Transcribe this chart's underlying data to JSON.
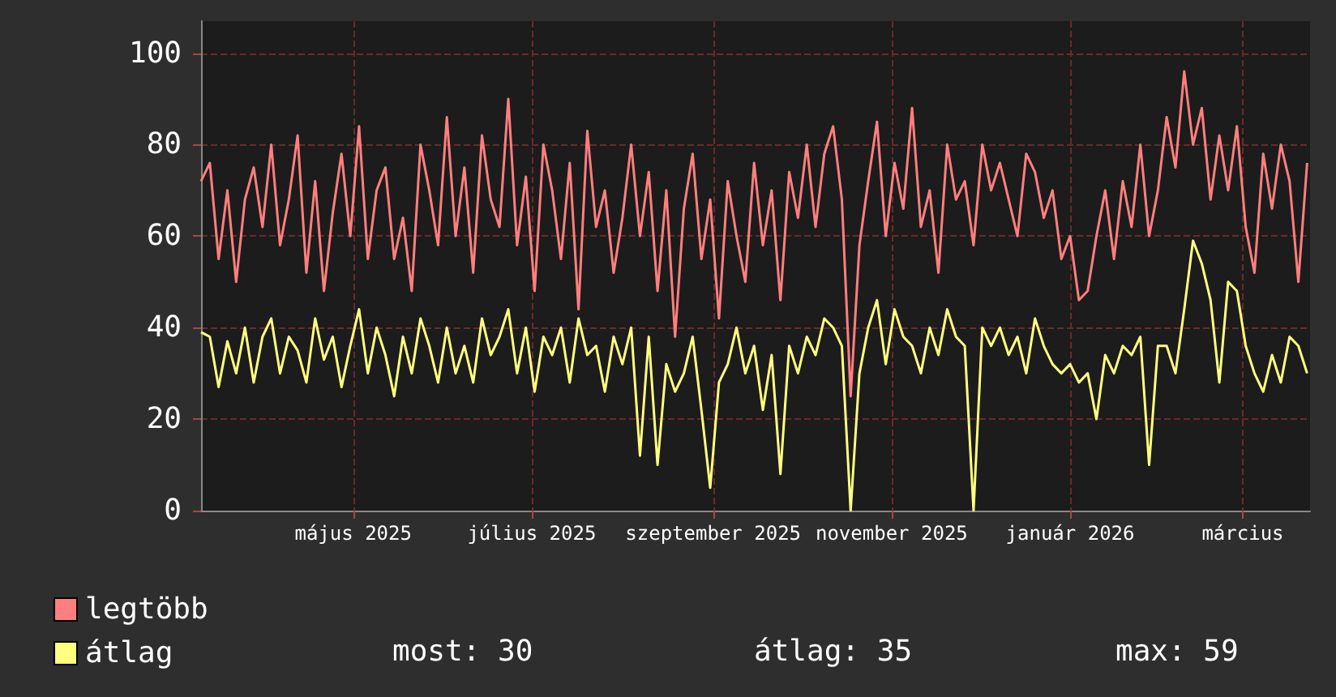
{
  "chart_data": {
    "type": "line",
    "x": [
      "2025-03-10",
      "2025-03-13",
      "2025-03-16",
      "2025-03-19",
      "2025-03-22",
      "2025-03-25",
      "2025-03-28",
      "2025-03-31",
      "2025-04-03",
      "2025-04-06",
      "2025-04-09",
      "2025-04-12",
      "2025-04-15",
      "2025-04-18",
      "2025-04-21",
      "2025-04-24",
      "2025-04-27",
      "2025-04-30",
      "2025-05-03",
      "2025-05-06",
      "2025-05-09",
      "2025-05-12",
      "2025-05-15",
      "2025-05-18",
      "2025-05-21",
      "2025-05-24",
      "2025-05-27",
      "2025-05-30",
      "2025-06-02",
      "2025-06-05",
      "2025-06-08",
      "2025-06-11",
      "2025-06-14",
      "2025-06-17",
      "2025-06-20",
      "2025-06-23",
      "2025-06-26",
      "2025-06-29",
      "2025-07-02",
      "2025-07-05",
      "2025-07-08",
      "2025-07-11",
      "2025-07-14",
      "2025-07-17",
      "2025-07-20",
      "2025-07-23",
      "2025-07-26",
      "2025-07-29",
      "2025-08-01",
      "2025-08-04",
      "2025-08-07",
      "2025-08-10",
      "2025-08-13",
      "2025-08-16",
      "2025-08-19",
      "2025-08-22",
      "2025-08-25",
      "2025-08-28",
      "2025-08-31",
      "2025-09-03",
      "2025-09-06",
      "2025-09-09",
      "2025-09-12",
      "2025-09-15",
      "2025-09-18",
      "2025-09-21",
      "2025-09-24",
      "2025-09-27",
      "2025-09-30",
      "2025-10-03",
      "2025-10-06",
      "2025-10-09",
      "2025-10-12",
      "2025-10-15",
      "2025-10-18",
      "2025-10-21",
      "2025-10-24",
      "2025-10-27",
      "2025-10-30",
      "2025-11-02",
      "2025-11-05",
      "2025-11-08",
      "2025-11-11",
      "2025-11-14",
      "2025-11-17",
      "2025-11-20",
      "2025-11-23",
      "2025-11-26",
      "2025-11-29",
      "2025-12-02",
      "2025-12-05",
      "2025-12-08",
      "2025-12-11",
      "2025-12-14",
      "2025-12-17",
      "2025-12-20",
      "2025-12-23",
      "2025-12-26",
      "2025-12-29",
      "2026-01-01",
      "2026-01-04",
      "2026-01-07",
      "2026-01-10",
      "2026-01-13",
      "2026-01-16",
      "2026-01-19",
      "2026-01-22",
      "2026-01-25",
      "2026-01-28",
      "2026-01-31",
      "2026-02-03",
      "2026-02-06",
      "2026-02-09",
      "2026-02-12",
      "2026-02-15",
      "2026-02-18",
      "2026-02-21",
      "2026-02-24",
      "2026-02-27",
      "2026-03-02",
      "2026-03-05",
      "2026-03-08",
      "2026-03-11",
      "2026-03-14",
      "2026-03-17",
      "2026-03-20",
      "2026-03-23"
    ],
    "series": [
      {
        "name": "legtöbb",
        "color": "#ff7f7f",
        "values": [
          72,
          76,
          55,
          70,
          50,
          68,
          75,
          62,
          80,
          58,
          68,
          82,
          52,
          72,
          48,
          65,
          78,
          60,
          84,
          55,
          70,
          75,
          55,
          64,
          48,
          80,
          70,
          58,
          86,
          60,
          75,
          52,
          82,
          68,
          62,
          90,
          58,
          73,
          48,
          80,
          70,
          55,
          76,
          44,
          83,
          62,
          70,
          52,
          64,
          80,
          60,
          74,
          48,
          70,
          38,
          66,
          78,
          55,
          68,
          42,
          72,
          60,
          50,
          76,
          58,
          70,
          46,
          74,
          64,
          80,
          62,
          78,
          84,
          68,
          25,
          58,
          72,
          85,
          60,
          76,
          66,
          88,
          62,
          70,
          52,
          80,
          68,
          72,
          58,
          80,
          70,
          76,
          68,
          60,
          78,
          74,
          64,
          70,
          55,
          60,
          46,
          48,
          60,
          70,
          55,
          72,
          62,
          80,
          60,
          70,
          86,
          75,
          96,
          80,
          88,
          68,
          82,
          70,
          84,
          62,
          52,
          78,
          66,
          80,
          72,
          50,
          76
        ]
      },
      {
        "name": "átlag",
        "color": "#ffff7f",
        "values": [
          39,
          38,
          27,
          37,
          30,
          40,
          28,
          38,
          42,
          30,
          38,
          35,
          28,
          42,
          33,
          38,
          27,
          36,
          44,
          30,
          40,
          34,
          25,
          38,
          30,
          42,
          36,
          28,
          40,
          30,
          36,
          28,
          42,
          34,
          38,
          44,
          30,
          40,
          26,
          38,
          34,
          40,
          28,
          42,
          34,
          36,
          26,
          38,
          32,
          40,
          12,
          38,
          10,
          32,
          26,
          30,
          38,
          22,
          5,
          28,
          32,
          40,
          30,
          36,
          22,
          34,
          8,
          36,
          30,
          38,
          34,
          42,
          40,
          36,
          0,
          30,
          40,
          46,
          32,
          44,
          38,
          36,
          30,
          40,
          34,
          44,
          38,
          36,
          0,
          40,
          36,
          40,
          34,
          38,
          30,
          42,
          36,
          32,
          30,
          32,
          28,
          30,
          20,
          34,
          30,
          36,
          34,
          38,
          10,
          36,
          36,
          30,
          44,
          59,
          54,
          46,
          28,
          50,
          48,
          36,
          30,
          26,
          34,
          28,
          38,
          36,
          30
        ]
      }
    ],
    "xlim": [
      "2025-03-10",
      "2026-03-24"
    ],
    "xticks": [
      {
        "value": "2025-05-01",
        "label": "május 2025"
      },
      {
        "value": "2025-07-01",
        "label": "július 2025"
      },
      {
        "value": "2025-09-01",
        "label": "szeptember 2025"
      },
      {
        "value": "2025-11-01",
        "label": "november 2025"
      },
      {
        "value": "2026-01-01",
        "label": "január 2026"
      },
      {
        "value": "2026-03-01",
        "label": "március"
      }
    ],
    "ylim": [
      0,
      107
    ],
    "yticks": [
      0,
      20,
      40,
      60,
      80,
      100
    ],
    "grid": true,
    "legend": "bottom left",
    "line_style": "solid",
    "annotations": [
      "most: 30",
      "átlag: 35",
      "max: 59"
    ]
  }
}
